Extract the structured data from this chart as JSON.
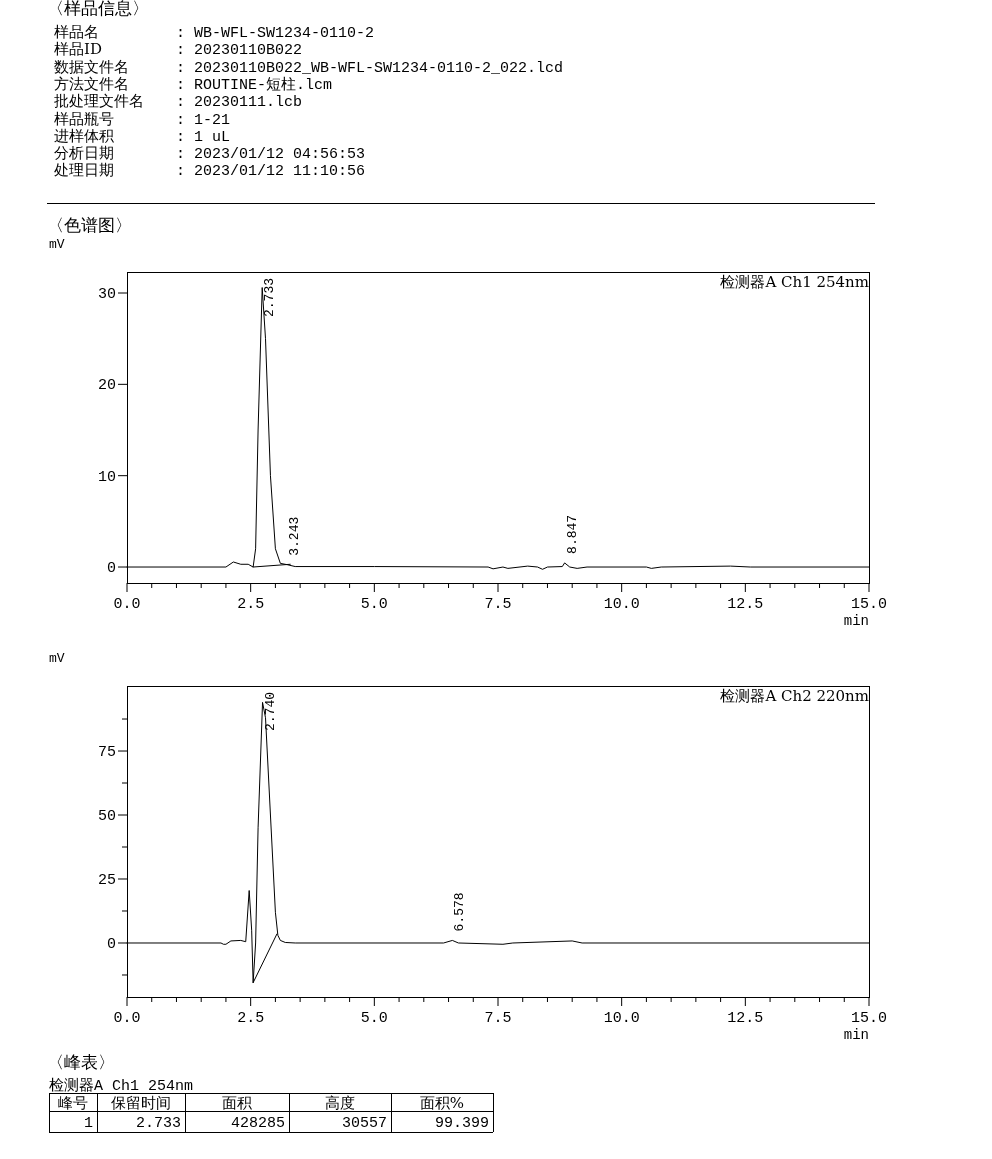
{
  "chart_data": [
    {
      "type": "other",
      "title": "〈样品信息〉",
      "annotations": [
        "样品名",
        ": WB-WFL-SW1234-0110-2",
        "样品ID",
        ": 20230110B022",
        "数据文件名",
        ": 20230110B022_WB-WFL-SW1234-0110-2_022.lcd",
        "方法文件名",
        ": ROUTINE-短柱.lcm",
        "批处理文件名",
        ": 20230111.lcb",
        "样品瓶号",
        ": 1-21",
        "进样体积",
        ": 1 uL",
        "分析日期",
        ": 2023/01/12 04:56:53",
        "处理日期",
        ": 2023/01/12 11:10:56"
      ]
    },
    {
      "type": "line",
      "title": "〈色谱图〉",
      "ylabel": "mV",
      "xlabel": "min",
      "xlim": [
        0,
        15
      ],
      "ylim": [
        -1.75,
        32.3
      ],
      "xticks": [
        {
          "value": 0,
          "label": "0.0"
        },
        {
          "value": 0.5,
          "label": null
        },
        {
          "value": 1,
          "label": null
        },
        {
          "value": 1.5,
          "label": null
        },
        {
          "value": 2,
          "label": null
        },
        {
          "value": 2.5,
          "label": "2.5"
        },
        {
          "value": 3,
          "label": null
        },
        {
          "value": 3.5,
          "label": null
        },
        {
          "value": 4,
          "label": null
        },
        {
          "value": 4.5,
          "label": null
        },
        {
          "value": 5,
          "label": "5.0"
        },
        {
          "value": 5.5,
          "label": null
        },
        {
          "value": 6,
          "label": null
        },
        {
          "value": 6.5,
          "label": null
        },
        {
          "value": 7,
          "label": null
        },
        {
          "value": 7.5,
          "label": "7.5"
        },
        {
          "value": 8,
          "label": null
        },
        {
          "value": 8.5,
          "label": null
        },
        {
          "value": 9,
          "label": null
        },
        {
          "value": 9.5,
          "label": null
        },
        {
          "value": 10,
          "label": "10.0"
        },
        {
          "value": 10.5,
          "label": null
        },
        {
          "value": 11,
          "label": null
        },
        {
          "value": 11.5,
          "label": null
        },
        {
          "value": 12,
          "label": null
        },
        {
          "value": 12.5,
          "label": "12.5"
        },
        {
          "value": 13,
          "label": null
        },
        {
          "value": 13.5,
          "label": null
        },
        {
          "value": 14,
          "label": null
        },
        {
          "value": 14.5,
          "label": null
        },
        {
          "value": 15,
          "label": "15.0"
        }
      ],
      "yticks": [
        0,
        10,
        20,
        30
      ],
      "annotations": [
        "检测器A Ch1 254nm",
        {
          "text": "2.733",
          "x": 2.733,
          "y": 30.6
        },
        {
          "text": "3.243",
          "x": 3.243,
          "y": 0.25
        },
        {
          "text": "8.847",
          "x": 8.847,
          "y": 0.45
        }
      ],
      "series": [
        {
          "color": "#000000",
          "x": [
            0,
            2.0,
            2.15,
            2.3,
            2.45,
            2.55,
            2.6,
            2.65,
            2.733,
            2.8,
            2.9,
            3.0,
            3.1,
            3.243,
            3.4,
            5,
            7.3,
            7.4,
            7.6,
            7.7,
            8.1,
            8.3,
            8.4,
            8.5,
            8.8,
            8.847,
            8.95,
            9.1,
            9.3,
            10.5,
            10.6,
            10.8,
            12.2,
            12.6,
            15
          ],
          "values": [
            0,
            0,
            0.55,
            0.3,
            0.3,
            0,
            2,
            15,
            30.6,
            25,
            10,
            2,
            0.4,
            0.25,
            0.05,
            0.05,
            0,
            -0.2,
            0,
            -0.15,
            0.1,
            0,
            -0.25,
            0,
            0.05,
            0.45,
            0,
            -0.15,
            0,
            0,
            -0.15,
            0,
            0.1,
            0,
            0
          ]
        },
        {
          "color": "#000000",
          "x": [
            2.55,
            3.3
          ],
          "values": [
            0,
            0.3
          ]
        }
      ]
    },
    {
      "type": "line",
      "xlabel": "min",
      "ylabel": "mV",
      "xlim": [
        0,
        15
      ],
      "ylim": [
        -21.1,
        100.4
      ],
      "xticks": [
        {
          "value": 0,
          "label": "0.0"
        },
        {
          "value": 0.5,
          "label": null
        },
        {
          "value": 1,
          "label": null
        },
        {
          "value": 1.5,
          "label": null
        },
        {
          "value": 2,
          "label": null
        },
        {
          "value": 2.5,
          "label": "2.5"
        },
        {
          "value": 3,
          "label": null
        },
        {
          "value": 3.5,
          "label": null
        },
        {
          "value": 4,
          "label": null
        },
        {
          "value": 4.5,
          "label": null
        },
        {
          "value": 5,
          "label": "5.0"
        },
        {
          "value": 5.5,
          "label": null
        },
        {
          "value": 6,
          "label": null
        },
        {
          "value": 6.5,
          "label": null
        },
        {
          "value": 7,
          "label": null
        },
        {
          "value": 7.5,
          "label": "7.5"
        },
        {
          "value": 8,
          "label": null
        },
        {
          "value": 8.5,
          "label": null
        },
        {
          "value": 9,
          "label": null
        },
        {
          "value": 9.5,
          "label": null
        },
        {
          "value": 10,
          "label": "10.0"
        },
        {
          "value": 10.5,
          "label": null
        },
        {
          "value": 11,
          "label": null
        },
        {
          "value": 11.5,
          "label": null
        },
        {
          "value": 12,
          "label": null
        },
        {
          "value": 12.5,
          "label": "12.5"
        },
        {
          "value": 13,
          "label": null
        },
        {
          "value": 13.5,
          "label": null
        },
        {
          "value": 14,
          "label": null
        },
        {
          "value": 14.5,
          "label": null
        },
        {
          "value": 15,
          "label": "15.0"
        }
      ],
      "yticks": [
        {
          "value": -12.5,
          "label": null
        },
        0,
        {
          "value": 12.5,
          "label": null
        },
        25,
        {
          "value": 37.5,
          "label": null
        },
        50,
        {
          "value": 62.5,
          "label": null
        },
        75,
        {
          "value": 87.5,
          "label": null
        }
      ],
      "annotations": [
        "检测器A Ch2 220nm",
        {
          "text": "2.740",
          "x": 2.74,
          "y": 94
        },
        {
          "text": "6.578",
          "x": 6.578,
          "y": 1
        }
      ],
      "series": [
        {
          "color": "#000000",
          "x": [
            0,
            1.9,
            1.95,
            2.0,
            2.1,
            2.3,
            2.4,
            2.47,
            2.52,
            2.55,
            2.6,
            2.65,
            2.74,
            2.8,
            2.9,
            3.0,
            3.05,
            3.1,
            3.2,
            3.4,
            6.4,
            6.578,
            6.7,
            7.6,
            7.8,
            9.0,
            9.2,
            15
          ],
          "values": [
            0,
            0,
            -0.5,
            -0.5,
            0.8,
            1,
            0.5,
            20.5,
            5,
            -15.5,
            0,
            45,
            94,
            88,
            50,
            12,
            3,
            1,
            0.2,
            0,
            0,
            1,
            0,
            -0.5,
            0,
            0.8,
            0,
            0
          ]
        },
        {
          "color": "#000000",
          "x": [
            2.55,
            3.03
          ],
          "values": [
            -15.5,
            3.5
          ]
        }
      ]
    },
    {
      "type": "other",
      "title": "〈峰表〉",
      "subtitle": "检测器A Ch1 254nm",
      "annotations": [
        "峰号",
        "保留时间",
        "面积",
        "高度",
        "面积%",
        "1",
        "2.733",
        "428285",
        "30557",
        "99.399"
      ]
    }
  ]
}
